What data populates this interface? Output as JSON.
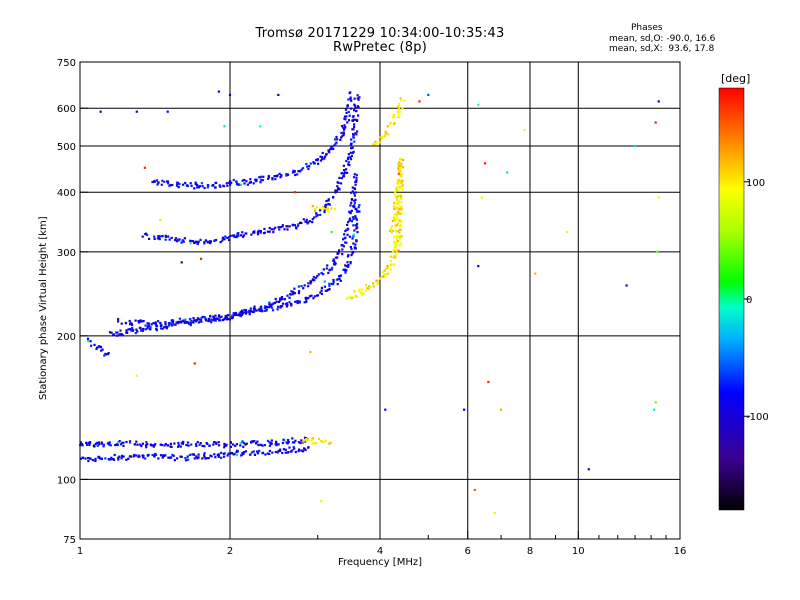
{
  "header": {
    "title_line1": "Tromsø 20171229 10:34:00-10:35:43",
    "title_line2": "RwPretec (8p)",
    "stats_title": "Phases",
    "stats_o": "mean, sd,O: -90.0, 16.6",
    "stats_x": "mean, sd,X:  93.6, 17.8"
  },
  "chart_data": {
    "type": "scatter",
    "xlabel": "Frequency [MHz]",
    "ylabel": "Stationary phase Virtual Height [km]",
    "x_scale": "log",
    "y_scale": "log",
    "xlim": [
      1,
      16
    ],
    "ylim": [
      75,
      750
    ],
    "x_ticks": [
      1,
      2,
      4,
      6,
      8,
      10,
      16
    ],
    "x_tick_labels": [
      "1",
      "2",
      "4",
      "6",
      "8",
      "10",
      "16"
    ],
    "x_minor_ticks": [
      3,
      5,
      7,
      9,
      11,
      12,
      13,
      14,
      15
    ],
    "y_ticks": [
      75,
      100,
      200,
      300,
      400,
      500,
      600,
      750
    ],
    "y_tick_labels": [
      "75",
      "100",
      "200",
      "300",
      "400",
      "500",
      "600",
      "750"
    ],
    "x_gridlines": [
      2,
      4,
      6,
      8,
      10
    ],
    "y_gridlines": [
      100,
      200,
      300,
      400,
      500,
      600
    ],
    "grid": true,
    "colorbar": {
      "label": "[deg]",
      "range": [
        -180,
        180
      ],
      "ticks": [
        100,
        0,
        -100
      ],
      "tick_labels": [
        "100",
        "0",
        "-100"
      ],
      "placement": "right"
    },
    "series": [
      {
        "color_value": -90,
        "segments": [
          {
            "x": [
              1.0,
              1.2,
              1.4,
              1.6,
              1.8,
              2.0,
              2.3,
              2.6,
              2.9
            ],
            "y": [
              110,
              111,
              112,
              111,
              112,
              113,
              114,
              115,
              116
            ]
          },
          {
            "x": [
              1.0,
              1.2,
              1.5,
              1.8,
              2.0,
              2.3,
              2.6,
              2.9
            ],
            "y": [
              118,
              119,
              118,
              119,
              118,
              119,
              120,
              121
            ]
          },
          {
            "x": [
              1.15,
              1.3,
              1.5,
              1.8,
              2.0,
              2.3,
              2.6,
              2.9,
              3.1,
              3.3,
              3.45,
              3.55,
              3.6
            ],
            "y": [
              201,
              205,
              210,
              215,
              220,
              226,
              232,
              240,
              250,
              262,
              280,
              310,
              380
            ]
          },
          {
            "x": [
              1.2,
              1.35,
              1.5,
              1.7,
              1.9,
              2.0,
              2.2,
              2.4,
              2.6,
              2.8,
              3.0,
              3.2,
              3.35,
              3.45,
              3.52,
              3.56
            ],
            "y": [
              215,
              212,
              213,
              216,
              218,
              220,
              226,
              233,
              242,
              252,
              265,
              280,
              300,
              330,
              370,
              440
            ]
          },
          {
            "x": [
              1.35,
              1.5,
              1.65,
              1.8,
              1.9,
              2.0,
              2.1,
              2.3,
              2.5,
              2.7,
              2.9,
              3.1,
              3.3,
              3.45,
              3.55,
              3.6
            ],
            "y": [
              325,
              320,
              315,
              315,
              318,
              320,
              325,
              330,
              335,
              340,
              350,
              370,
              410,
              460,
              520,
              640
            ]
          },
          {
            "x": [
              1.4,
              1.55,
              1.7,
              1.85,
              2.0,
              2.15,
              2.3,
              2.5,
              2.7,
              2.9,
              3.05,
              3.2,
              3.35,
              3.45,
              3.52
            ],
            "y": [
              420,
              415,
              413,
              414,
              417,
              420,
              425,
              432,
              440,
              455,
              470,
              495,
              530,
              580,
              650
            ]
          },
          {
            "x": [
              1.05,
              1.08,
              1.12,
              1.15
            ],
            "y": [
              195,
              190,
              185,
              180
            ]
          }
        ]
      },
      {
        "color_value": 100,
        "segments": [
          {
            "x": [
              3.4,
              3.6,
              3.8,
              4.0,
              4.15,
              4.25,
              4.3,
              4.33
            ],
            "y": [
              240,
              245,
              252,
              262,
              275,
              290,
              310,
              330
            ]
          },
          {
            "x": [
              4.25,
              4.3,
              4.35,
              4.38,
              4.4,
              4.38,
              4.35
            ],
            "y": [
              330,
              360,
              400,
              440,
              470,
              380,
              300
            ]
          },
          {
            "x": [
              3.9,
              4.05,
              4.2,
              4.3,
              4.4,
              4.45
            ],
            "y": [
              500,
              520,
              550,
              580,
              610,
              635
            ]
          },
          {
            "x": [
              2.95,
              3.05,
              3.15,
              3.25
            ],
            "y": [
              370,
              368,
              366,
              368
            ]
          },
          {
            "x": [
              2.8,
              2.9,
              3.0,
              3.1,
              3.2
            ],
            "y": [
              120,
              121,
              120,
              119,
              120
            ]
          }
        ]
      }
    ],
    "scattered_points": [
      {
        "x": 6.3,
        "y": 610,
        "v": -10
      },
      {
        "x": 6.5,
        "y": 460,
        "v": 170
      },
      {
        "x": 7.2,
        "y": 440,
        "v": -20
      },
      {
        "x": 6.4,
        "y": 390,
        "v": 80
      },
      {
        "x": 6.3,
        "y": 280,
        "v": -100
      },
      {
        "x": 6.6,
        "y": 160,
        "v": 170
      },
      {
        "x": 7.0,
        "y": 140,
        "v": 120
      },
      {
        "x": 6.2,
        "y": 95,
        "v": 150
      },
      {
        "x": 6.8,
        "y": 85,
        "v": 100
      },
      {
        "x": 10.5,
        "y": 105,
        "v": -100
      },
      {
        "x": 12.5,
        "y": 255,
        "v": -100
      },
      {
        "x": 13.0,
        "y": 500,
        "v": -20
      },
      {
        "x": 14.5,
        "y": 620,
        "v": -100
      },
      {
        "x": 14.3,
        "y": 560,
        "v": 170
      },
      {
        "x": 14.5,
        "y": 390,
        "v": 90
      },
      {
        "x": 14.4,
        "y": 300,
        "v": 40
      },
      {
        "x": 14.3,
        "y": 145,
        "v": 40
      },
      {
        "x": 14.2,
        "y": 140,
        "v": -20
      },
      {
        "x": 7.8,
        "y": 540,
        "v": 80
      },
      {
        "x": 4.8,
        "y": 620,
        "v": 170
      },
      {
        "x": 9.5,
        "y": 330,
        "v": 80
      },
      {
        "x": 8.2,
        "y": 270,
        "v": 120
      },
      {
        "x": 5.9,
        "y": 140,
        "v": -80
      },
      {
        "x": 4.1,
        "y": 140,
        "v": -100
      },
      {
        "x": 2.5,
        "y": 640,
        "v": -100
      },
      {
        "x": 2.0,
        "y": 640,
        "v": -100
      },
      {
        "x": 1.9,
        "y": 650,
        "v": -110
      },
      {
        "x": 1.3,
        "y": 590,
        "v": -100
      },
      {
        "x": 1.5,
        "y": 590,
        "v": -90
      },
      {
        "x": 1.1,
        "y": 590,
        "v": -80
      },
      {
        "x": 1.35,
        "y": 450,
        "v": 170
      },
      {
        "x": 1.45,
        "y": 350,
        "v": 60
      },
      {
        "x": 1.6,
        "y": 285,
        "v": -120
      },
      {
        "x": 1.75,
        "y": 290,
        "v": 170
      },
      {
        "x": 3.05,
        "y": 90,
        "v": 100
      },
      {
        "x": 2.9,
        "y": 185,
        "v": 120
      },
      {
        "x": 1.7,
        "y": 175,
        "v": 170
      },
      {
        "x": 1.3,
        "y": 165,
        "v": 100
      },
      {
        "x": 2.3,
        "y": 550,
        "v": -10
      },
      {
        "x": 1.95,
        "y": 550,
        "v": -20
      },
      {
        "x": 3.1,
        "y": 260,
        "v": -40
      },
      {
        "x": 3.2,
        "y": 330,
        "v": 30
      },
      {
        "x": 2.7,
        "y": 400,
        "v": 170
      },
      {
        "x": 5.0,
        "y": 640,
        "v": -60
      }
    ]
  }
}
